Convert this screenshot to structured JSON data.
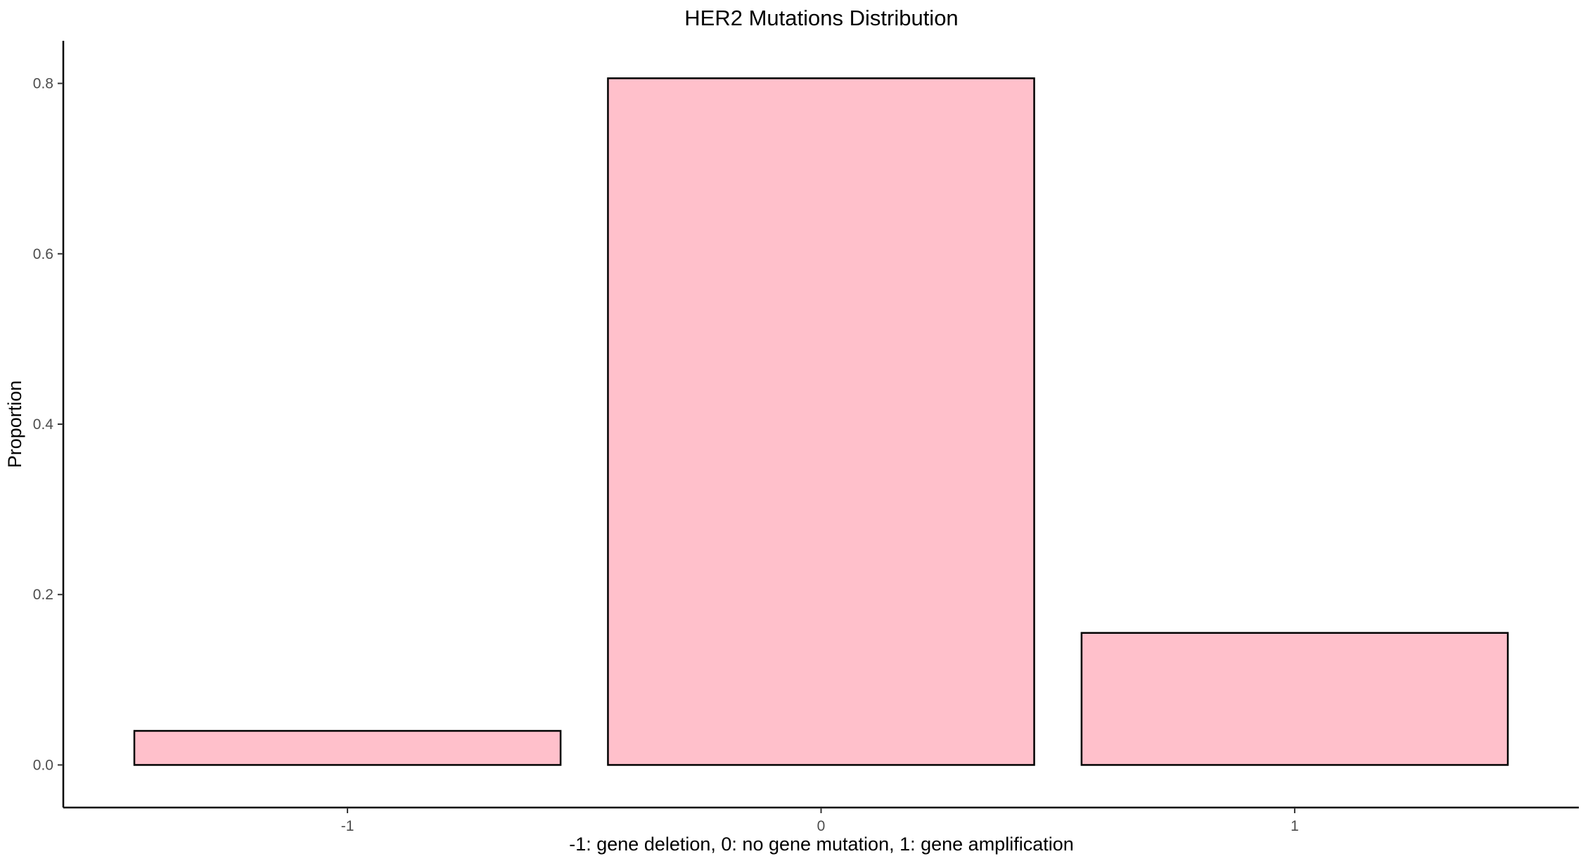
{
  "chart_data": {
    "type": "bar",
    "title": "HER2 Mutations Distribution",
    "xlabel": "-1: gene deletion, 0: no gene mutation, 1: gene amplification",
    "ylabel": "Proportion",
    "categories": [
      "-1",
      "0",
      "1"
    ],
    "values": [
      0.04,
      0.806,
      0.155
    ],
    "ylim": [
      -0.05,
      0.85
    ],
    "yticks": [
      0.0,
      0.2,
      0.4,
      0.6,
      0.8
    ],
    "ytick_labels": [
      "0.0",
      "0.2",
      "0.4",
      "0.6",
      "0.8"
    ],
    "grid": false,
    "legend": "none",
    "bar_color": "#ffc0cb",
    "bar_edge_color": "#000000"
  }
}
